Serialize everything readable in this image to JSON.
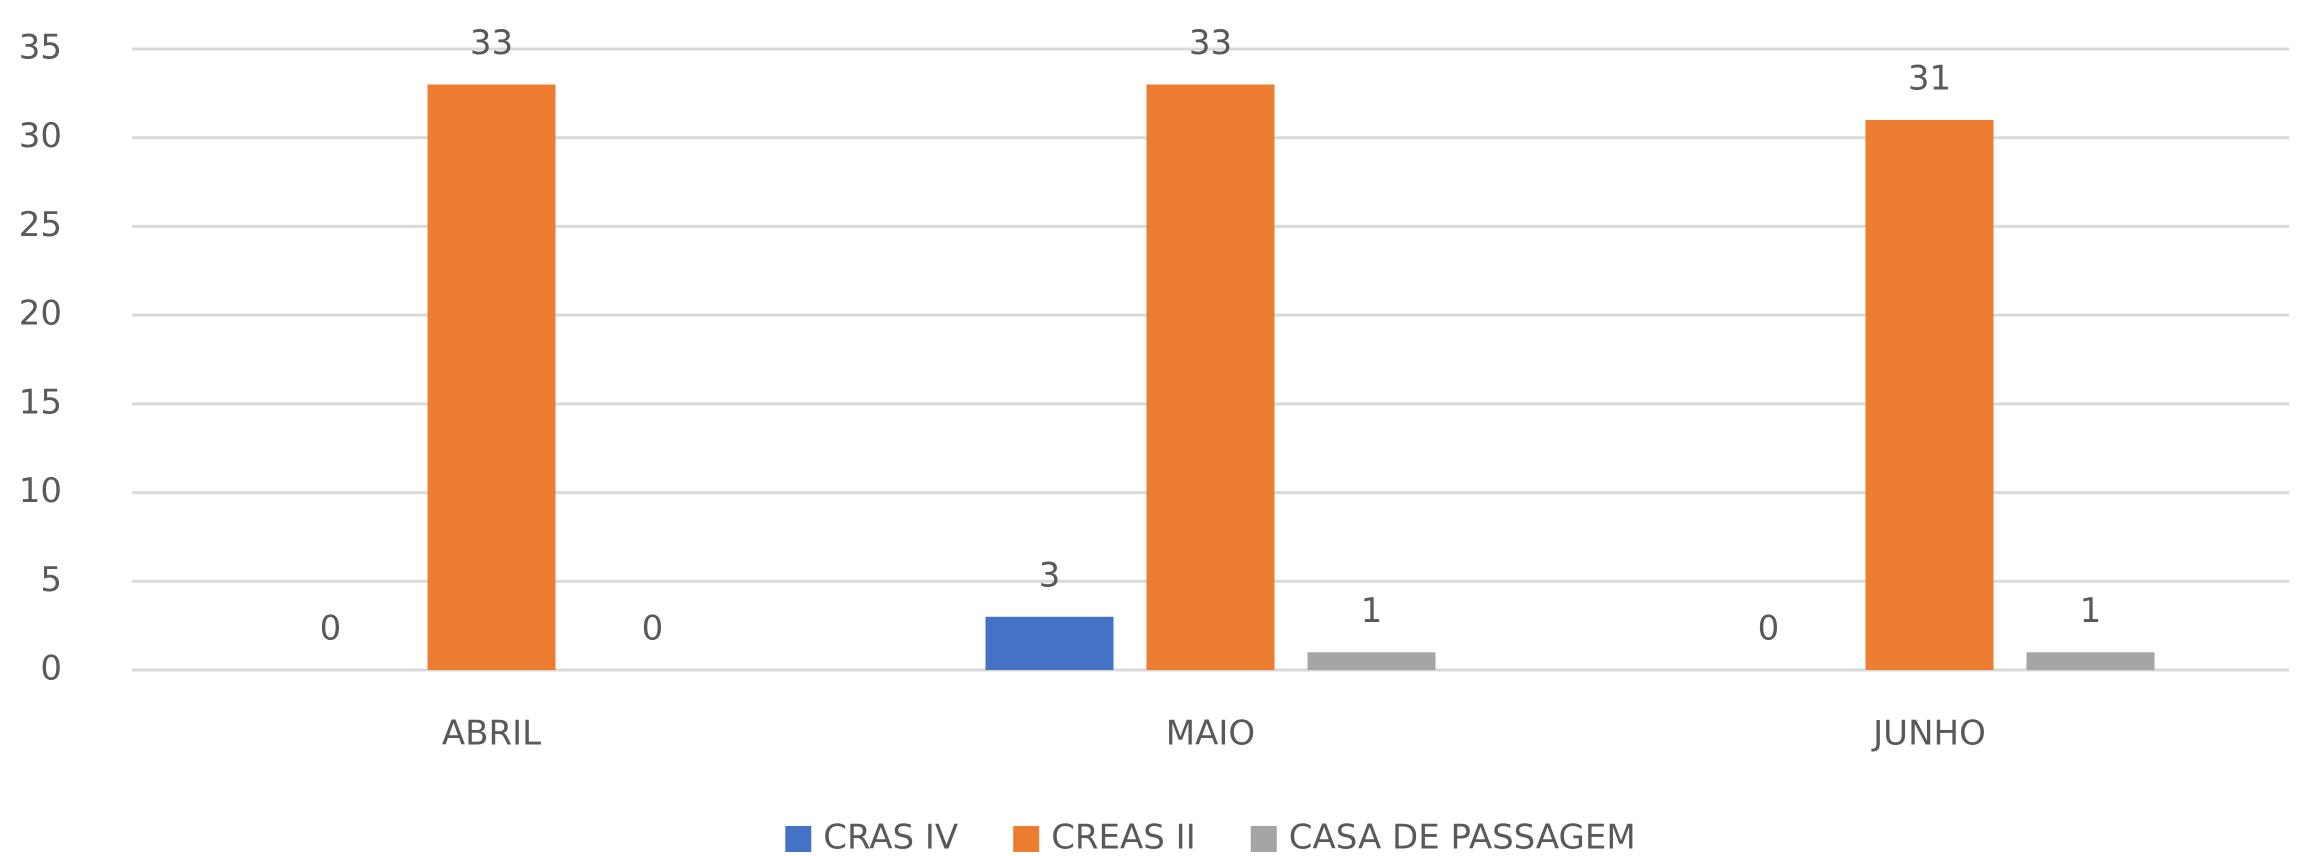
{
  "chart_data": {
    "type": "bar",
    "categories": [
      "ABRIL",
      "MAIO",
      "JUNHO"
    ],
    "series": [
      {
        "name": "CRAS IV",
        "color": "#4472c4",
        "values": [
          0,
          3,
          0
        ]
      },
      {
        "name": "CREAS II",
        "color": "#ed7d31",
        "values": [
          33,
          33,
          31
        ]
      },
      {
        "name": "CASA DE PASSAGEM",
        "color": "#a5a5a5",
        "values": [
          0,
          1,
          1
        ]
      }
    ],
    "ylim": [
      0,
      35
    ],
    "yticks": [
      0,
      5,
      10,
      15,
      20,
      25,
      30,
      35
    ],
    "grid": true,
    "legend": "bottom"
  }
}
